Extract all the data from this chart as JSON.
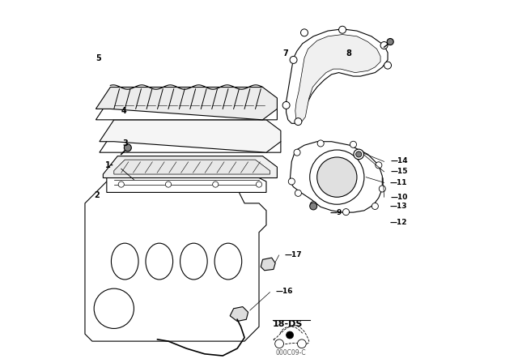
{
  "bg_color": "#ffffff",
  "line_color": "#000000",
  "fig_width": 6.4,
  "fig_height": 4.48,
  "dpi": 100,
  "watermark": "000C09-C"
}
